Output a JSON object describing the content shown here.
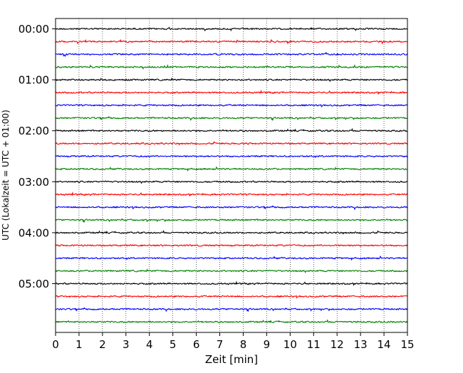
{
  "chart_data": {
    "type": "line",
    "chart_kind": "helicorder",
    "xlabel": "Zeit  [min]",
    "ylabel": "UTC (Lokalzeit = UTC + 01:00)",
    "xlim": [
      0,
      15
    ],
    "x_ticks": [
      "0",
      "1",
      "2",
      "3",
      "4",
      "5",
      "6",
      "7",
      "8",
      "9",
      "10",
      "11",
      "12",
      "13",
      "14",
      "15"
    ],
    "y_ticks": [
      "00:00",
      "01:00",
      "02:00",
      "03:00",
      "04:00",
      "05:00"
    ],
    "trace_count": 24,
    "trace_interval_min": 15,
    "trace_colors": [
      "#000000",
      "#ff0000",
      "#0000ff",
      "#008000"
    ],
    "grid": "vertical dotted lines at each minute",
    "legend": "none"
  }
}
